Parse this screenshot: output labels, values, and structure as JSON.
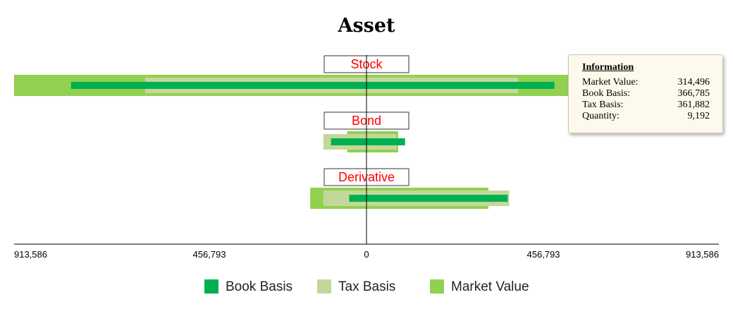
{
  "chart_data": {
    "type": "bar",
    "title": "Asset",
    "categories": [
      "Stock",
      "Bond",
      "Derivative"
    ],
    "series": [
      {
        "name": "Book Basis",
        "color": "#00b050",
        "values": [
          {
            "left": 766000,
            "right": 487000
          },
          {
            "left": 92000,
            "right": 100000
          },
          {
            "left": 45000,
            "right": 366000
          }
        ]
      },
      {
        "name": "Tax Basis",
        "color": "#c4d79b",
        "values": [
          {
            "left": 574000,
            "right": 393000
          },
          {
            "left": 112000,
            "right": 78000
          },
          {
            "left": 112000,
            "right": 370000
          }
        ]
      },
      {
        "name": "Market Value",
        "color": "#92d050",
        "values": [
          {
            "left": 913586,
            "right": 540000
          },
          {
            "left": 50000,
            "right": 82000
          },
          {
            "left": 146000,
            "right": 316000
          }
        ]
      }
    ],
    "xlim": [
      -913586,
      913586
    ],
    "tick_labels": [
      "913,586",
      "456,793",
      "0",
      "456,793",
      "913,586"
    ],
    "legend_position": "bottom"
  },
  "tooltip": {
    "title": "Information",
    "rows": [
      {
        "label": "Market Value:",
        "value": "314,496"
      },
      {
        "label": "Book Basis:",
        "value": "366,785"
      },
      {
        "label": "Tax Basis:",
        "value": "361,882"
      },
      {
        "label": "Quantity:",
        "value": "9,192"
      }
    ]
  }
}
